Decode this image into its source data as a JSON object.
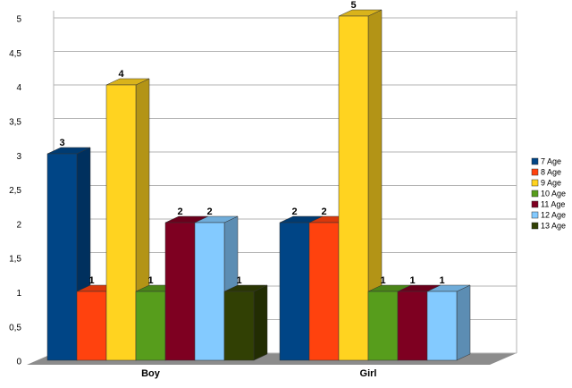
{
  "chart_data": {
    "type": "bar3d",
    "categories": [
      "Boy",
      "Girl"
    ],
    "series": [
      {
        "name": "7 Age",
        "color": "#004586",
        "values": [
          3,
          2
        ]
      },
      {
        "name": "8 Age",
        "color": "#ff420e",
        "values": [
          1,
          2
        ]
      },
      {
        "name": "9 Age",
        "color": "#ffd320",
        "values": [
          4,
          5
        ]
      },
      {
        "name": "10 Age",
        "color": "#579d1c",
        "values": [
          1,
          1
        ]
      },
      {
        "name": "11 Age",
        "color": "#7e0021",
        "values": [
          2,
          1
        ]
      },
      {
        "name": "12 Age",
        "color": "#83caff",
        "values": [
          2,
          1
        ]
      },
      {
        "name": "13 Age",
        "color": "#314004",
        "values": [
          1,
          null
        ]
      }
    ],
    "ylim": [
      0,
      5
    ],
    "yticks": [
      0,
      {
        "value": 0.5,
        "label": "0,5"
      },
      1,
      {
        "value": 1.5,
        "label": "1,5"
      },
      2,
      {
        "value": 2.5,
        "label": "2,5"
      },
      3,
      {
        "value": 3.5,
        "label": "3,5"
      },
      4,
      {
        "value": 4.5,
        "label": "4,5"
      },
      5
    ],
    "grid": true,
    "legend": "right"
  }
}
